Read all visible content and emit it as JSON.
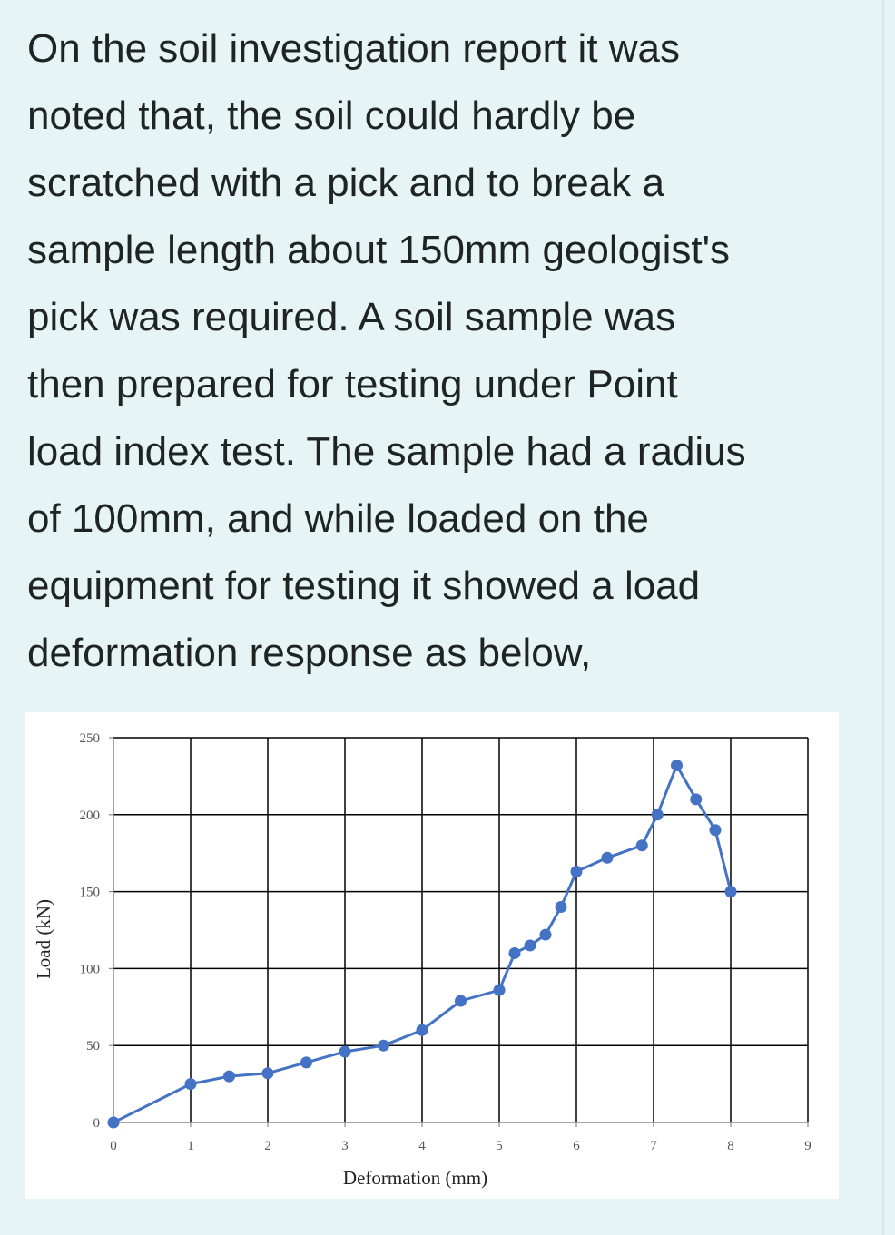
{
  "question": {
    "lines": [
      "On the soil investigation report it was",
      "noted that, the soil could hardly be",
      "scratched with a pick and to break a",
      "sample length about 150mm geologist's",
      "pick was required. A soil sample was",
      "then prepared for testing under Point",
      "load index test. The sample had a radius",
      "of 100mm, and while loaded on the",
      "equipment for testing it showed a load",
      "deformation response as below,"
    ]
  },
  "chart_data": {
    "type": "line",
    "title": "",
    "xlabel": "Deformation (mm)",
    "ylabel": "Load (kN)",
    "xlim": [
      0,
      9
    ],
    "ylim": [
      0,
      250
    ],
    "x_ticks": [
      "0",
      "1",
      "2",
      "3",
      "4",
      "5",
      "6",
      "7",
      "8",
      "9"
    ],
    "y_ticks": [
      "0",
      "50",
      "100",
      "150",
      "200",
      "250"
    ],
    "grid": true,
    "legend": "none",
    "colors": {
      "series": "#4472c4",
      "grid": "#000000",
      "text": "#555555"
    },
    "series": [
      {
        "x": [
          0,
          1,
          1.5,
          2,
          2.5,
          3,
          3.5,
          4,
          4.5,
          5,
          5.2,
          5.4,
          5.6,
          5.8,
          6,
          6.4,
          6.85,
          7.05,
          7.3,
          7.55,
          7.8,
          8
        ],
        "y": [
          0,
          25,
          30,
          32,
          39,
          46,
          50,
          60,
          79,
          86,
          110,
          115,
          122,
          140,
          163,
          172,
          180,
          200,
          232,
          210,
          190,
          150
        ]
      }
    ]
  }
}
